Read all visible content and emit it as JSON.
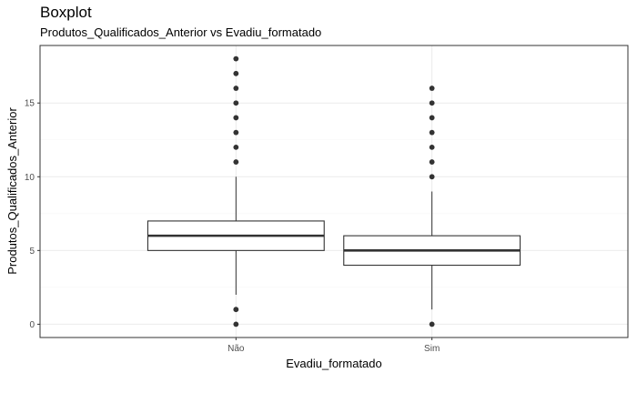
{
  "chart_data": {
    "type": "boxplot",
    "title": "Boxplot",
    "subtitle": "Produtos_Qualificados_Anterior vs Evadiu_formatado",
    "xlabel": "Evadiu_formatado",
    "ylabel": "Produtos_Qualificados_Anterior",
    "ylim": [
      -0.9,
      18.9
    ],
    "yticks": [
      0,
      5,
      10,
      15
    ],
    "ytick_labels": [
      "0",
      "5",
      "10",
      "15"
    ],
    "grid": true,
    "categories": [
      "Não",
      "Sim"
    ],
    "boxes": [
      {
        "category": "Não",
        "q1": 5,
        "median": 6,
        "q3": 7,
        "whisker_low": 2,
        "whisker_high": 10,
        "outliers": [
          0,
          1,
          11,
          12,
          13,
          14,
          15,
          16,
          17,
          18
        ]
      },
      {
        "category": "Sim",
        "q1": 4,
        "median": 5,
        "q3": 6,
        "whisker_low": 1,
        "whisker_high": 9,
        "outliers": [
          0,
          10,
          11,
          12,
          13,
          14,
          15,
          16
        ]
      }
    ],
    "colors": {
      "panel_border": "#333333",
      "grid_major": "#ebebeb",
      "grid_minor": "#f5f5f5",
      "box_line": "#333333",
      "point": "#333333"
    }
  }
}
